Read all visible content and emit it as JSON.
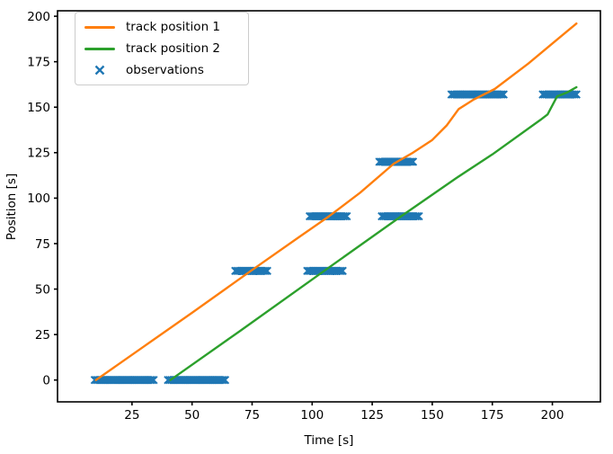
{
  "figure": {
    "background": "#ffffff",
    "text_color": "#000000",
    "spine_color": "#000000"
  },
  "chart_data": {
    "type": "line+scatter",
    "title": "",
    "xlabel": "Time [s]",
    "ylabel": "Position [s]",
    "xlim": [
      -6,
      220
    ],
    "ylim": [
      -12,
      203
    ],
    "x_ticks": [
      25,
      50,
      75,
      100,
      125,
      150,
      175,
      200
    ],
    "y_ticks": [
      0,
      25,
      50,
      75,
      100,
      125,
      150,
      175,
      200
    ],
    "grid": false,
    "legend": {
      "position": "upper-left",
      "border_color": "#cccccc",
      "background": "#ffffff"
    },
    "series": [
      {
        "name": "track position 1",
        "type": "line",
        "color": "#ff7f0e",
        "points": [
          [
            10,
            0
          ],
          [
            30,
            18.5
          ],
          [
            50,
            37
          ],
          [
            75,
            60.5
          ],
          [
            95,
            79
          ],
          [
            107,
            90
          ],
          [
            120,
            103
          ],
          [
            134,
            119
          ],
          [
            142,
            125
          ],
          [
            150,
            132
          ],
          [
            156,
            140
          ],
          [
            161,
            149
          ],
          [
            167,
            154
          ],
          [
            176,
            160
          ],
          [
            190,
            174
          ],
          [
            200,
            185
          ],
          [
            210,
            196
          ]
        ]
      },
      {
        "name": "track position 2",
        "type": "line",
        "color": "#2ca02c",
        "points": [
          [
            41,
            0
          ],
          [
            70,
            27
          ],
          [
            105,
            60
          ],
          [
            137,
            90
          ],
          [
            160,
            111
          ],
          [
            175,
            124
          ],
          [
            195,
            143
          ],
          [
            198,
            146
          ],
          [
            202,
            156
          ],
          [
            206,
            158
          ],
          [
            210,
            161
          ]
        ]
      },
      {
        "name": "observations",
        "type": "scatter",
        "color": "#1f77b4",
        "marker": "x",
        "clusters": [
          {
            "position": 0,
            "t_start": 9.5,
            "t_end": 34,
            "step": 0.7
          },
          {
            "position": 0,
            "t_start": 40,
            "t_end": 64,
            "step": 0.7
          },
          {
            "position": 60,
            "t_start": 68,
            "t_end": 81.5,
            "step": 0.7
          },
          {
            "position": 60,
            "t_start": 98,
            "t_end": 113,
            "step": 0.7
          },
          {
            "position": 90,
            "t_start": 99,
            "t_end": 115,
            "step": 0.7
          },
          {
            "position": 90,
            "t_start": 129,
            "t_end": 145,
            "step": 0.7
          },
          {
            "position": 120,
            "t_start": 128,
            "t_end": 142,
            "step": 0.7
          },
          {
            "position": 157,
            "t_start": 158,
            "t_end": 180,
            "step": 0.7
          },
          {
            "position": 157,
            "t_start": 196,
            "t_end": 210,
            "step": 0.7
          }
        ]
      }
    ]
  }
}
